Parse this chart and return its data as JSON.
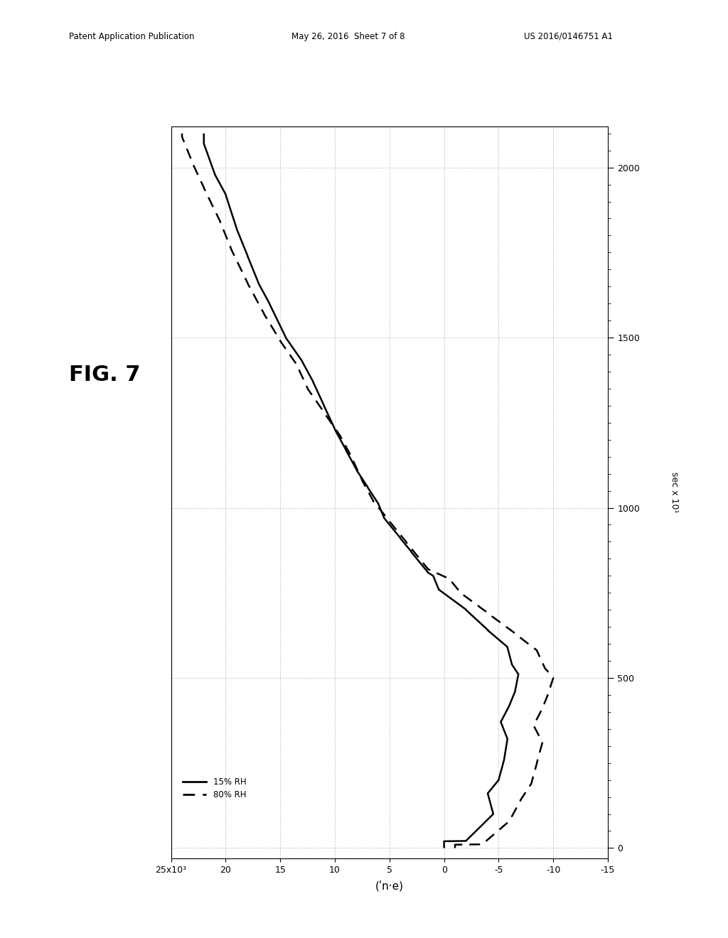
{
  "title": "FIG. 7",
  "header_left": "Patent Application Publication",
  "header_center": "May 26, 2016  Sheet 7 of 8",
  "header_right": "US 2016/0146751 A1",
  "xlabel": "(ʹn·e)",
  "ylabel": "sec x 10¹",
  "legend_solid": "15% RH",
  "legend_dashed": "80% RH",
  "background_color": "#ffffff",
  "line_color": "#000000",
  "grid_color": "#bbbbbb",
  "xlim_left": 25,
  "xlim_right": -15,
  "ylim_bottom": -30,
  "ylim_top": 2120,
  "xticks": [
    25,
    20,
    15,
    10,
    5,
    0,
    -5,
    -10,
    -15
  ],
  "xtick_labels": [
    "25x10³",
    "20",
    "15",
    "10",
    "5",
    "0",
    "-5",
    "-10",
    "-15"
  ],
  "yticks": [
    0,
    500,
    1000,
    1500,
    2000
  ],
  "solid_line_t": [
    0,
    20,
    21,
    100,
    101,
    160,
    161,
    200,
    201,
    260,
    261,
    320,
    321,
    370,
    371,
    420,
    421,
    460,
    461,
    510,
    511,
    540,
    541,
    590,
    591,
    640,
    641,
    700,
    701,
    760,
    761,
    800,
    800,
    810,
    811,
    870,
    871,
    910,
    911,
    970,
    971,
    1010,
    1011,
    1060,
    1061,
    1110,
    1111,
    1170,
    1171,
    1230,
    1231,
    1300,
    1301,
    1370,
    1371,
    1430,
    1431,
    1500,
    1501,
    1600,
    1601,
    1660,
    1661,
    1740,
    1741,
    1820,
    1821,
    1920,
    1921,
    1980,
    1981,
    2070,
    2071,
    2100
  ],
  "solid_line_v": [
    0,
    0,
    -2,
    -4.5,
    -4.5,
    -4,
    -4,
    -5,
    -5,
    -5.5,
    -5.5,
    -5.8,
    -5.8,
    -5.2,
    -5.2,
    -6,
    -6,
    -6.5,
    -6.5,
    -6.8,
    -6.8,
    -6.2,
    -6.2,
    -5.8,
    -5.8,
    -4,
    -4,
    -2,
    -2,
    0.5,
    0.5,
    1,
    1,
    1.5,
    1.5,
    3,
    3,
    4,
    4,
    5.5,
    5.5,
    6,
    6,
    7,
    7,
    8,
    8,
    9,
    9,
    10,
    10,
    11,
    11,
    12,
    12,
    13,
    13,
    14.5,
    14.5,
    16,
    16,
    17,
    17,
    18,
    18,
    19,
    19,
    20,
    20,
    21,
    21,
    22,
    22,
    22
  ],
  "dashed_line_t": [
    0,
    10,
    11,
    80,
    81,
    140,
    141,
    190,
    191,
    250,
    251,
    310,
    311,
    360,
    361,
    410,
    411,
    450,
    451,
    500,
    501,
    530,
    531,
    580,
    581,
    630,
    631,
    690,
    691,
    750,
    751,
    790,
    791,
    820,
    821,
    900,
    901,
    960,
    961,
    1020,
    1021,
    1080,
    1081,
    1150,
    1151,
    1210,
    1211,
    1280,
    1281,
    1350,
    1351,
    1420,
    1421,
    1490,
    1491,
    1570,
    1571,
    1660,
    1661,
    1760,
    1761,
    1840,
    1841,
    1940,
    1941,
    2010,
    2011,
    2090,
    2091,
    2100
  ],
  "dashed_line_v": [
    -1,
    -1,
    -3.5,
    -6,
    -6,
    -7,
    -7,
    -8,
    -8,
    -8.5,
    -8.5,
    -9,
    -9,
    -8.2,
    -8.2,
    -9,
    -9,
    -9.5,
    -9.5,
    -10,
    -10,
    -9.2,
    -9.2,
    -8.5,
    -8.5,
    -6.5,
    -6.5,
    -4,
    -4,
    -1.5,
    -1.5,
    -0.5,
    -0.5,
    1.5,
    1.5,
    3.5,
    3.5,
    5,
    5,
    6.5,
    6.5,
    7.5,
    7.5,
    8.5,
    8.5,
    9.5,
    9.5,
    11,
    11,
    12.5,
    12.5,
    13.5,
    13.5,
    15,
    15,
    16.5,
    16.5,
    18,
    18,
    19.5,
    19.5,
    20.5,
    20.5,
    22,
    22,
    23,
    23,
    24,
    24,
    24
  ]
}
